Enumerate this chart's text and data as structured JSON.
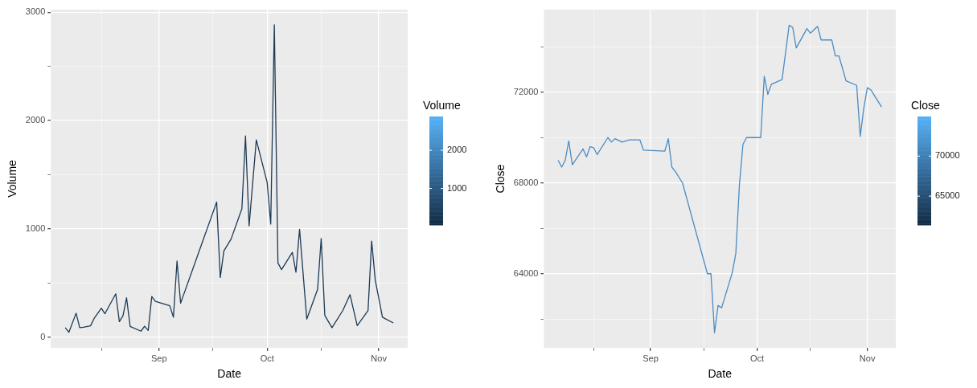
{
  "chart_data": [
    {
      "type": "line",
      "xlabel": "Date",
      "ylabel": "Volume",
      "clabel": "Volume",
      "clim": [
        44,
        2885
      ],
      "cticks": [
        1000,
        2000
      ],
      "colors": [
        "#132b43",
        "#56b1f7"
      ],
      "grid": true,
      "x": [
        "--08-06",
        "--08-07",
        "--08-09",
        "--08-10",
        "--08-11",
        "--08-13",
        "--08-14",
        "--08-16",
        "--08-17",
        "--08-20",
        "--08-21",
        "--08-22",
        "--08-23",
        "--08-24",
        "--08-27",
        "--08-28",
        "--08-29",
        "--08-30",
        "--08-31",
        "--09-04",
        "--09-05",
        "--09-06",
        "--09-07",
        "--09-17",
        "--09-18",
        "--09-19",
        "--09-21",
        "--09-24",
        "--09-25",
        "--09-26",
        "--09-28",
        "--10-01",
        "--10-02",
        "--10-03",
        "--10-04",
        "--10-05",
        "--10-08",
        "--10-09",
        "--10-10",
        "--10-12",
        "--10-15",
        "--10-16",
        "--10-17",
        "--10-19",
        "--10-22",
        "--10-24",
        "--10-26",
        "--10-29",
        "--10-30",
        "--10-31",
        "--11-02",
        "--11-05"
      ],
      "series": [
        {
          "color": "#1d3a56",
          "values": [
            86,
            44,
            220,
            86,
            90,
            103,
            171,
            267,
            215,
            399,
            142,
            196,
            362,
            98,
            54,
            100,
            61,
            374,
            330,
            289,
            183,
            702,
            313,
            1247,
            550,
            795,
            905,
            1186,
            1858,
            1027,
            1822,
            1430,
            1044,
            2885,
            684,
            623,
            782,
            599,
            995,
            166,
            440,
            910,
            200,
            86,
            245,
            391,
            105,
            245,
            887,
            526,
            183,
            130
          ]
        }
      ],
      "xlim": [
        "--08-02",
        "--11-09"
      ],
      "xticks": [
        {
          "value": "--08-16",
          "label": null
        },
        {
          "value": "--09-01",
          "label": "Sep"
        },
        {
          "value": "--09-16",
          "label": null
        },
        {
          "value": "--10-01",
          "label": "Oct"
        },
        {
          "value": "--10-16",
          "label": null
        },
        {
          "value": "--11-01",
          "label": "Nov"
        }
      ],
      "ylim": [
        -100,
        3025
      ],
      "yticks": [
        0,
        {
          "value": 500,
          "label": null
        },
        1000,
        {
          "value": 1500,
          "label": null
        },
        2000,
        {
          "value": 2500,
          "label": null
        },
        3000
      ]
    },
    {
      "type": "line",
      "xlabel": "Date",
      "ylabel": "Close",
      "clabel": "Close",
      "clim": [
        61400,
        74950
      ],
      "cticks": [
        65000,
        70000
      ],
      "colors": [
        "#132b43",
        "#56b1f7"
      ],
      "grid": true,
      "x": [
        "--08-06",
        "--08-07",
        "--08-08",
        "--08-09",
        "--08-10",
        "--08-13",
        "--08-14",
        "--08-15",
        "--08-16",
        "--08-17",
        "--08-20",
        "--08-21",
        "--08-22",
        "--08-24",
        "--08-26",
        "--08-29",
        "--08-30",
        "--09-05",
        "--09-06",
        "--09-07",
        "--09-08",
        "--09-10",
        "--09-17",
        "--09-18",
        "--09-19",
        "--09-20",
        "--09-21",
        "--09-24",
        "--09-25",
        "--09-26",
        "--09-27",
        "--09-28",
        "--10-02",
        "--10-03",
        "--10-04",
        "--10-05",
        "--10-08",
        "--10-10",
        "--10-11",
        "--10-12",
        "--10-15",
        "--10-16",
        "--10-18",
        "--10-19",
        "--10-22",
        "--10-23",
        "--10-24",
        "--10-26",
        "--10-29",
        "--10-30",
        "--10-31",
        "--11-01",
        "--11-02",
        "--11-05"
      ],
      "series": [
        {
          "color": "#4a8cc4",
          "values": [
            69000,
            68700,
            69000,
            69850,
            68800,
            69500,
            69150,
            69600,
            69550,
            69250,
            70000,
            69800,
            69950,
            69800,
            69900,
            69900,
            69450,
            69400,
            69950,
            68700,
            68500,
            68000,
            64000,
            64000,
            61400,
            62600,
            62500,
            64050,
            64900,
            67900,
            69700,
            70000,
            70000,
            72700,
            71900,
            72350,
            72550,
            74950,
            74850,
            73950,
            74800,
            74600,
            74900,
            74300,
            74300,
            73600,
            73600,
            72500,
            72300,
            70050,
            71300,
            72200,
            72100,
            71350
          ]
        }
      ],
      "xlim": [
        "--08-02",
        "--11-09"
      ],
      "xticks": [
        {
          "value": "--08-16",
          "label": null
        },
        {
          "value": "--09-01",
          "label": "Sep"
        },
        {
          "value": "--09-16",
          "label": null
        },
        {
          "value": "--10-01",
          "label": "Oct"
        },
        {
          "value": "--10-16",
          "label": null
        },
        {
          "value": "--11-01",
          "label": "Nov"
        }
      ],
      "ylim": [
        60735,
        75637
      ],
      "yticks": [
        {
          "value": 62000,
          "label": null
        },
        64000,
        {
          "value": 66000,
          "label": null
        },
        68000,
        {
          "value": 70000,
          "label": null
        },
        72000,
        {
          "value": 74000,
          "label": null
        }
      ]
    }
  ]
}
